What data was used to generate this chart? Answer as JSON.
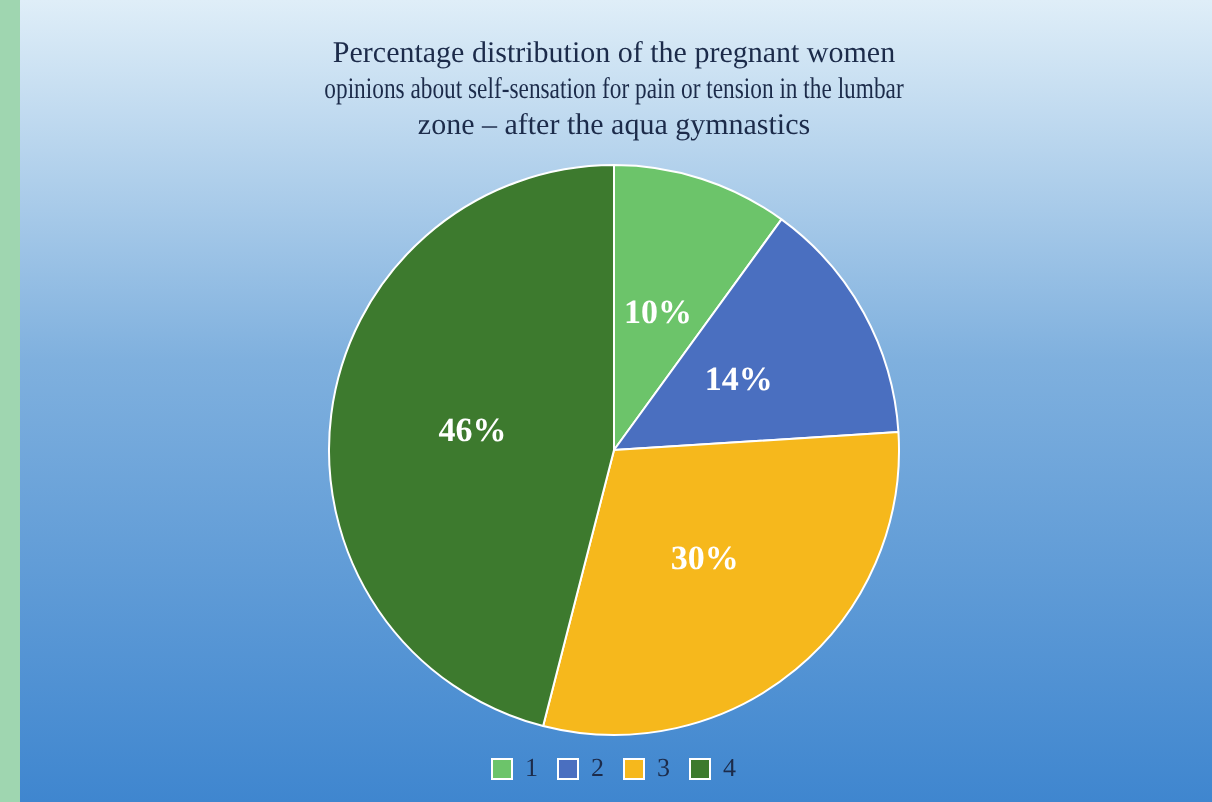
{
  "chart_data": {
    "type": "pie",
    "title": [
      "Percentage distribution of the pregnant women",
      "opinions about self-sensation for pain or tension in the lumbar",
      "zone – after the aqua gymnastics"
    ],
    "categories": [
      "1",
      "2",
      "3",
      "4"
    ],
    "values": [
      10,
      14,
      30,
      46
    ],
    "colors": [
      "#6cc46a",
      "#4a6fc0",
      "#f6b81c",
      "#3d7a2e"
    ],
    "value_labels": [
      "10%",
      "14%",
      "30%",
      "46%"
    ],
    "legend": "bottom"
  }
}
